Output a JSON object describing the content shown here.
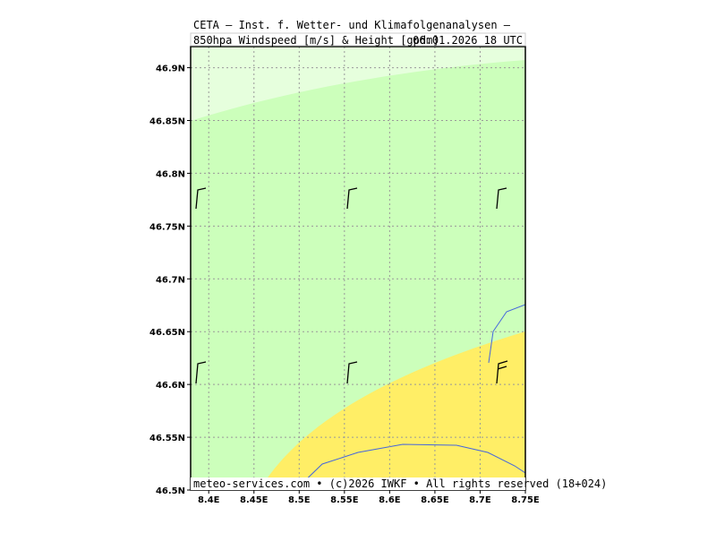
{
  "header": {
    "line1": "CETA – Inst. f. Wetter- und Klimafolgenanalysen –",
    "line2": "850hpa_Windspeed_[m/s]_&_Height_[gpdm]",
    "valid_time": "06.01.2026 18 UTC"
  },
  "map": {
    "lon_range": [
      8.38,
      8.75
    ],
    "lat_range": [
      46.5,
      46.92
    ],
    "lon_ticks": [
      {
        "value": 8.4,
        "label": "8.4E"
      },
      {
        "value": 8.45,
        "label": "8.45E"
      },
      {
        "value": 8.5,
        "label": "8.5E"
      },
      {
        "value": 8.55,
        "label": "8.55E"
      },
      {
        "value": 8.6,
        "label": "8.6E"
      },
      {
        "value": 8.65,
        "label": "8.65E"
      },
      {
        "value": 8.7,
        "label": "8.7E"
      },
      {
        "value": 8.75,
        "label": "8.75E"
      }
    ],
    "lat_ticks": [
      {
        "value": 46.5,
        "label": "46.5N"
      },
      {
        "value": 46.55,
        "label": "46.55N"
      },
      {
        "value": 46.6,
        "label": "46.6N"
      },
      {
        "value": 46.65,
        "label": "46.65N"
      },
      {
        "value": 46.7,
        "label": "46.7N"
      },
      {
        "value": 46.75,
        "label": "46.75N"
      },
      {
        "value": 46.8,
        "label": "46.8N"
      },
      {
        "value": 46.85,
        "label": "46.85N"
      },
      {
        "value": 46.9,
        "label": "46.9N"
      }
    ]
  },
  "footer": "meteo-services.com • (c)2026 IWKF • All rights reserved (18+024)"
}
